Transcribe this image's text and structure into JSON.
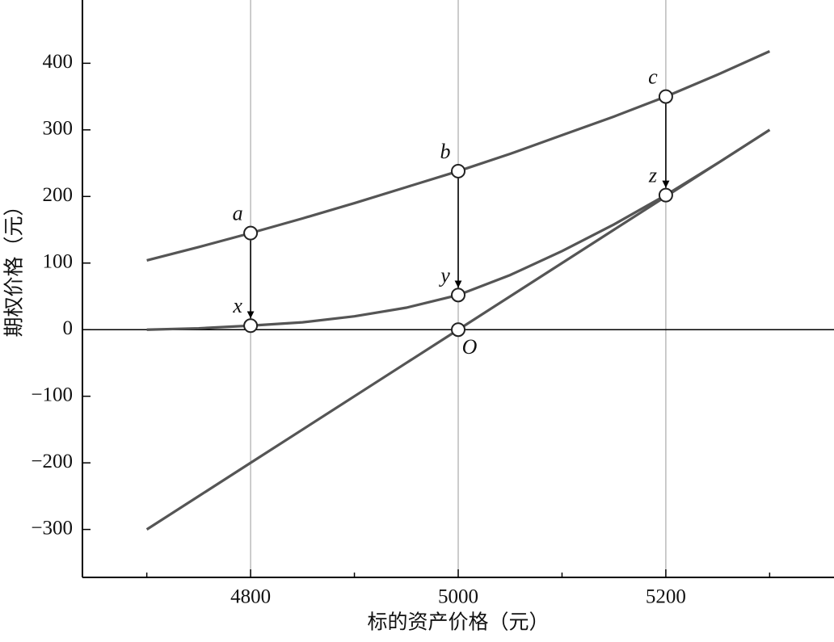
{
  "chart_data": {
    "type": "line",
    "x_label": "标的资产价格（元）",
    "y_label": "期权价格（元）",
    "x": [
      4700,
      4750,
      4800,
      4850,
      4900,
      4950,
      5000,
      5050,
      5100,
      5150,
      5200,
      5250,
      5300
    ],
    "series": [
      {
        "color": "#555555",
        "values": [
          104,
          124,
          145,
          167,
          190,
          214,
          238,
          264,
          292,
          320,
          350,
          383,
          418
        ],
        "point_labels": [
          null,
          null,
          "a",
          null,
          null,
          null,
          "b",
          null,
          null,
          null,
          "c",
          null,
          null
        ]
      },
      {
        "color": "#555555",
        "values": [
          0,
          2,
          6,
          11,
          20,
          33,
          52,
          82,
          118,
          158,
          202,
          250,
          300
        ],
        "point_labels": [
          null,
          null,
          "x",
          null,
          null,
          null,
          "y",
          null,
          null,
          null,
          "z",
          null,
          null
        ]
      },
      {
        "color": "#555555",
        "values": [
          -300,
          -250,
          -200,
          -150,
          -100,
          -50,
          0,
          50,
          100,
          150,
          200,
          250,
          300
        ],
        "point_labels": [
          null,
          null,
          null,
          null,
          null,
          null,
          "O",
          null,
          null,
          null,
          null,
          null,
          null
        ]
      }
    ],
    "xlim": [
      4638,
      5362
    ],
    "ylim": [
      -372,
      495
    ],
    "xticks": [
      4800,
      5000,
      5200
    ],
    "xminorticks": [
      4700,
      4900,
      5100,
      5300
    ],
    "yticks": [
      {
        "value": -300,
        "label": "−300"
      },
      {
        "value": -200,
        "label": "−200"
      },
      {
        "value": -100,
        "label": "−100"
      },
      0,
      100,
      200,
      300,
      400
    ],
    "grid": true,
    "zero_line": true
  }
}
